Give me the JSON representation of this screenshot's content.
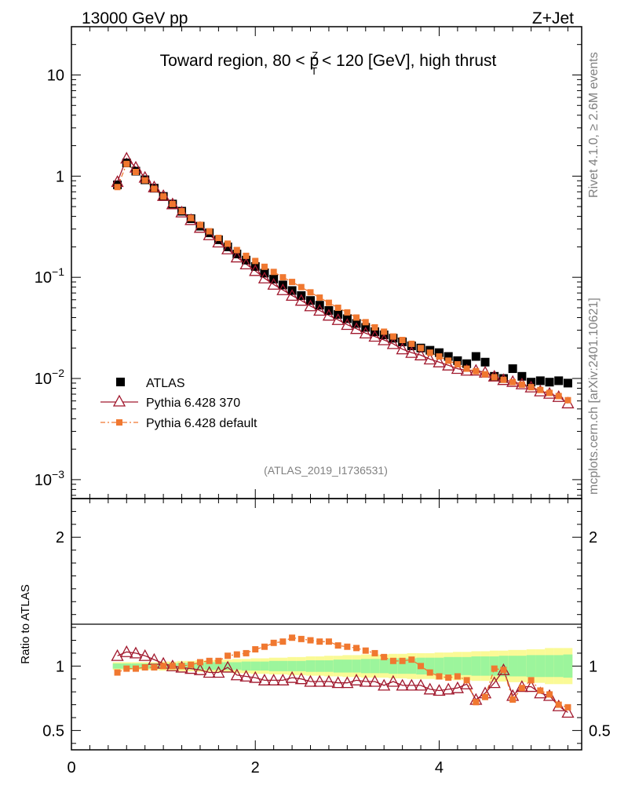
{
  "header": {
    "left": "13000 GeV pp",
    "right": "Z+Jet"
  },
  "side_text": {
    "rivet": "Rivet 4.1.0, ≥ 2.6M events",
    "mcplots": "mcplots.cern.ch [arXiv:2401.10621]"
  },
  "watermark": "(ATLAS_2019_I1736531)",
  "colors": {
    "atlas": "#000000",
    "pythia370": "#a0172c",
    "pythia_default": "#f07830",
    "band_inner": "#9cf59c",
    "band_outer": "#fafa96"
  },
  "chart_data": [
    {
      "type": "scatter",
      "panel": "main",
      "title": "Toward region, 80 < p_T^Z < 120 [GeV], high thrust",
      "title_parts": {
        "pre": "Toward region, 80 < p",
        "sup": "Z",
        "sub": "T",
        "post": " < 120 [GeV], high thrust"
      },
      "yscale": "log",
      "xlim": [
        0,
        5.55
      ],
      "ylim": [
        0.00065,
        30
      ],
      "yticks": [
        {
          "v": 10,
          "label": "10"
        },
        {
          "v": 1,
          "label": "1"
        },
        {
          "v": 0.1,
          "base": "10",
          "exp": "−1"
        },
        {
          "v": 0.01,
          "base": "10",
          "exp": "−2"
        },
        {
          "v": 0.001,
          "base": "10",
          "exp": "−3"
        }
      ],
      "legend_position": "lower-left",
      "x": [
        0.5,
        0.6,
        0.7,
        0.8,
        0.9,
        1.0,
        1.1,
        1.2,
        1.3,
        1.4,
        1.5,
        1.6,
        1.7,
        1.8,
        1.9,
        2.0,
        2.1,
        2.2,
        2.3,
        2.4,
        2.5,
        2.6,
        2.7,
        2.8,
        2.9,
        3.0,
        3.1,
        3.2,
        3.3,
        3.4,
        3.5,
        3.6,
        3.7,
        3.8,
        3.9,
        4.0,
        4.1,
        4.2,
        4.3,
        4.4,
        4.5,
        4.6,
        4.7,
        4.8,
        4.9,
        5.0,
        5.1,
        5.2,
        5.3,
        5.4
      ],
      "series": [
        {
          "name": "ATLAS",
          "style": "square",
          "values": [
            0.82,
            1.35,
            1.12,
            0.92,
            0.76,
            0.63,
            0.53,
            0.45,
            0.38,
            0.32,
            0.275,
            0.235,
            0.2,
            0.17,
            0.148,
            0.128,
            0.11,
            0.096,
            0.084,
            0.074,
            0.066,
            0.059,
            0.053,
            0.047,
            0.043,
            0.039,
            0.035,
            0.032,
            0.029,
            0.027,
            0.025,
            0.023,
            0.021,
            0.02,
            0.019,
            0.018,
            0.0165,
            0.015,
            0.014,
            0.0165,
            0.0145,
            0.0105,
            0.01,
            0.0125,
            0.0105,
            0.0092,
            0.0095,
            0.0092,
            0.0095,
            0.009
          ]
        },
        {
          "name": "Pythia 6.428 370",
          "style": "open-triangle",
          "values": [
            0.88,
            1.5,
            1.22,
            0.97,
            0.78,
            0.64,
            0.53,
            0.44,
            0.37,
            0.31,
            0.262,
            0.222,
            0.19,
            0.158,
            0.135,
            0.116,
            0.098,
            0.085,
            0.075,
            0.066,
            0.059,
            0.052,
            0.047,
            0.042,
            0.038,
            0.034,
            0.031,
            0.028,
            0.026,
            0.024,
            0.022,
            0.0195,
            0.018,
            0.017,
            0.0155,
            0.0145,
            0.0135,
            0.0125,
            0.012,
            0.012,
            0.0115,
            0.0105,
            0.0097,
            0.0093,
            0.0088,
            0.0082,
            0.0075,
            0.0071,
            0.0066,
            0.0057
          ]
        },
        {
          "name": "Pythia 6.428 default",
          "style": "filled-square-dashed",
          "values": [
            0.78,
            1.32,
            1.1,
            0.91,
            0.75,
            0.63,
            0.53,
            0.45,
            0.385,
            0.33,
            0.285,
            0.245,
            0.215,
            0.186,
            0.163,
            0.145,
            0.127,
            0.113,
            0.1,
            0.09,
            0.08,
            0.071,
            0.063,
            0.056,
            0.05,
            0.045,
            0.04,
            0.036,
            0.032,
            0.029,
            0.026,
            0.024,
            0.022,
            0.02,
            0.018,
            0.0165,
            0.015,
            0.0138,
            0.0125,
            0.0118,
            0.011,
            0.0103,
            0.0097,
            0.0092,
            0.0087,
            0.0082,
            0.0077,
            0.0072,
            0.0067,
            0.0061
          ]
        }
      ]
    },
    {
      "type": "scatter",
      "panel": "ratio",
      "ylabel": "Ratio to ATLAS",
      "xlim": [
        0,
        5.55
      ],
      "ylim": [
        0.35,
        2.3
      ],
      "yticks": [
        {
          "v": 2,
          "label": "2"
        },
        {
          "v": 1,
          "label": "1"
        },
        {
          "v": 0.5,
          "label": "0.5"
        }
      ],
      "xticks": [
        {
          "v": 0,
          "label": "0"
        },
        {
          "v": 2,
          "label": "2"
        },
        {
          "v": 4,
          "label": "4"
        }
      ],
      "x": [
        0.5,
        0.6,
        0.7,
        0.8,
        0.9,
        1.0,
        1.1,
        1.2,
        1.3,
        1.4,
        1.5,
        1.6,
        1.7,
        1.8,
        1.9,
        2.0,
        2.1,
        2.2,
        2.3,
        2.4,
        2.5,
        2.6,
        2.7,
        2.8,
        2.9,
        3.0,
        3.1,
        3.2,
        3.3,
        3.4,
        3.5,
        3.6,
        3.7,
        3.8,
        3.9,
        4.0,
        4.1,
        4.2,
        4.3,
        4.4,
        4.5,
        4.6,
        4.7,
        4.8,
        4.9,
        5.0,
        5.1,
        5.2,
        5.3,
        5.4
      ],
      "band_inner": [
        0.02,
        0.02,
        0.02,
        0.02,
        0.02,
        0.02,
        0.02,
        0.025,
        0.025,
        0.025,
        0.03,
        0.03,
        0.03,
        0.03,
        0.035,
        0.035,
        0.035,
        0.04,
        0.04,
        0.04,
        0.04,
        0.045,
        0.045,
        0.045,
        0.05,
        0.05,
        0.05,
        0.055,
        0.055,
        0.055,
        0.06,
        0.06,
        0.06,
        0.065,
        0.065,
        0.065,
        0.07,
        0.07,
        0.07,
        0.075,
        0.075,
        0.075,
        0.08,
        0.08,
        0.08,
        0.085,
        0.085,
        0.085,
        0.085,
        0.09
      ],
      "band_outer": [
        0.03,
        0.03,
        0.03,
        0.03,
        0.03,
        0.035,
        0.035,
        0.04,
        0.04,
        0.045,
        0.045,
        0.05,
        0.05,
        0.055,
        0.055,
        0.06,
        0.06,
        0.065,
        0.065,
        0.07,
        0.07,
        0.075,
        0.075,
        0.08,
        0.08,
        0.085,
        0.085,
        0.09,
        0.09,
        0.09,
        0.095,
        0.095,
        0.1,
        0.1,
        0.1,
        0.105,
        0.105,
        0.11,
        0.11,
        0.115,
        0.115,
        0.12,
        0.12,
        0.125,
        0.125,
        0.13,
        0.13,
        0.14,
        0.14,
        0.14
      ],
      "series": [
        {
          "name": "Pythia 6.428 370",
          "style": "open-triangle",
          "values": [
            1.08,
            1.11,
            1.1,
            1.08,
            1.05,
            1.02,
            1.0,
            0.99,
            0.98,
            0.97,
            0.95,
            0.95,
            0.99,
            0.93,
            0.92,
            0.91,
            0.89,
            0.89,
            0.89,
            0.91,
            0.9,
            0.88,
            0.88,
            0.88,
            0.87,
            0.87,
            0.89,
            0.88,
            0.88,
            0.85,
            0.88,
            0.85,
            0.85,
            0.85,
            0.82,
            0.81,
            0.82,
            0.83,
            0.86,
            0.74,
            0.79,
            0.87,
            0.97,
            0.77,
            0.84,
            0.84,
            0.79,
            0.77,
            0.69,
            0.64
          ]
        },
        {
          "name": "Pythia 6.428 default",
          "style": "filled-square-dashed",
          "values": [
            0.95,
            0.98,
            0.98,
            0.99,
            0.99,
            1.0,
            1.0,
            1.0,
            1.01,
            1.03,
            1.04,
            1.04,
            1.08,
            1.09,
            1.1,
            1.13,
            1.15,
            1.18,
            1.19,
            1.22,
            1.21,
            1.2,
            1.19,
            1.19,
            1.16,
            1.15,
            1.14,
            1.12,
            1.1,
            1.07,
            1.04,
            1.04,
            1.05,
            1.0,
            0.95,
            0.92,
            0.91,
            0.92,
            0.89,
            0.72,
            0.76,
            0.98,
            0.97,
            0.74,
            0.83,
            0.89,
            0.81,
            0.78,
            0.7,
            0.68
          ]
        }
      ]
    }
  ]
}
